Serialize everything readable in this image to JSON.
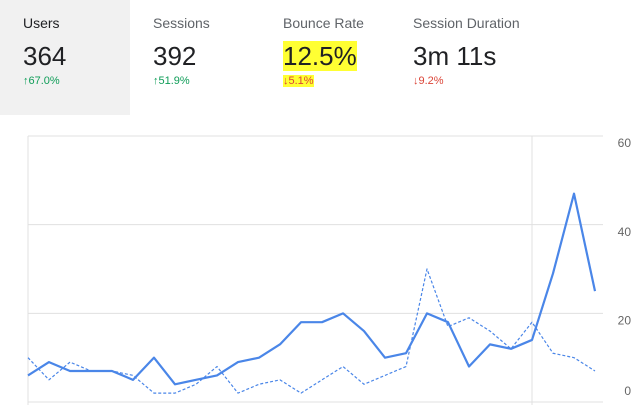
{
  "metrics": [
    {
      "label": "Users",
      "value": "364",
      "change": "↑67.0%",
      "direction": "up",
      "selected": true
    },
    {
      "label": "Sessions",
      "value": "392",
      "change": "↑51.9%",
      "direction": "up"
    },
    {
      "label": "Bounce Rate",
      "value": "12.5%",
      "change": "↓5.1%",
      "direction": "down",
      "highlighted": true
    },
    {
      "label": "Session Duration",
      "value": "3m 11s",
      "change": "↓9.2%",
      "direction": "down"
    }
  ],
  "chart_data": {
    "type": "line",
    "categories": [
      null,
      null,
      null,
      null,
      null,
      null,
      null,
      null,
      null,
      null,
      null,
      null,
      null,
      null,
      null,
      null,
      null,
      null,
      null,
      null,
      null,
      null,
      null,
      null,
      null,
      null,
      null,
      null
    ],
    "series": [
      {
        "color": "#4a86e8",
        "values": [
          6,
          9,
          7,
          7,
          7,
          5,
          10,
          4,
          5,
          6,
          9,
          10,
          13,
          18,
          18,
          20,
          16,
          10,
          11,
          20,
          18,
          8,
          13,
          12,
          14,
          29,
          47,
          25
        ]
      },
      {
        "color": "#4a86e8",
        "dashed": true,
        "values": [
          10,
          5,
          9,
          7,
          7,
          6,
          2,
          2,
          4,
          8,
          2,
          4,
          5,
          2,
          5,
          8,
          4,
          6,
          8,
          30,
          17,
          19,
          16,
          12,
          18,
          11,
          10,
          7
        ]
      }
    ],
    "ylim": [
      0,
      60
    ],
    "yticks": [
      0,
      20,
      40,
      60
    ],
    "grid": true
  }
}
